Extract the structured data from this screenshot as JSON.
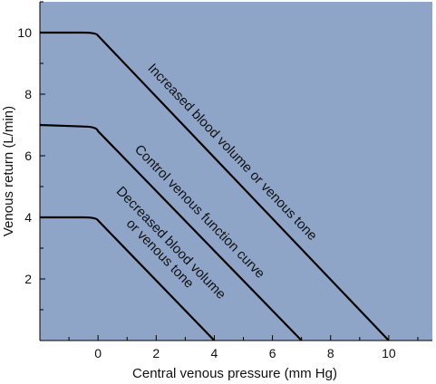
{
  "chart_data": {
    "type": "line",
    "xlabel": "Central venous pressure (mm Hg)",
    "ylabel": "Venous return (L/min)",
    "xlim": [
      -2,
      11.5
    ],
    "ylim": [
      0,
      11
    ],
    "x_ticks": [
      0,
      2,
      4,
      6,
      8,
      10
    ],
    "y_ticks": [
      2,
      4,
      6,
      8,
      10
    ],
    "x_minor_ticks": [
      -1,
      1,
      3,
      5,
      7,
      9,
      11
    ],
    "y_minor_ticks": [
      1,
      3,
      5,
      7,
      9,
      11
    ],
    "grid": false,
    "colors": {
      "plot_background": "#8fa5c8",
      "line": "#000000"
    },
    "series": [
      {
        "label_lines": [
          "Increased blood volume or venous tone"
        ],
        "x": [
          -2,
          -0.5,
          0,
          10
        ],
        "y": [
          10,
          10,
          9.9,
          0
        ]
      },
      {
        "label_lines": [
          "Control venous function curve"
        ],
        "x": [
          -2,
          -0.5,
          0,
          7
        ],
        "y": [
          7,
          6.95,
          6.8,
          0
        ]
      },
      {
        "label_lines": [
          "Decreased blood volume",
          "or venous tone"
        ],
        "x": [
          -2,
          -0.5,
          0,
          4
        ],
        "y": [
          4,
          4,
          3.9,
          0
        ]
      }
    ]
  }
}
